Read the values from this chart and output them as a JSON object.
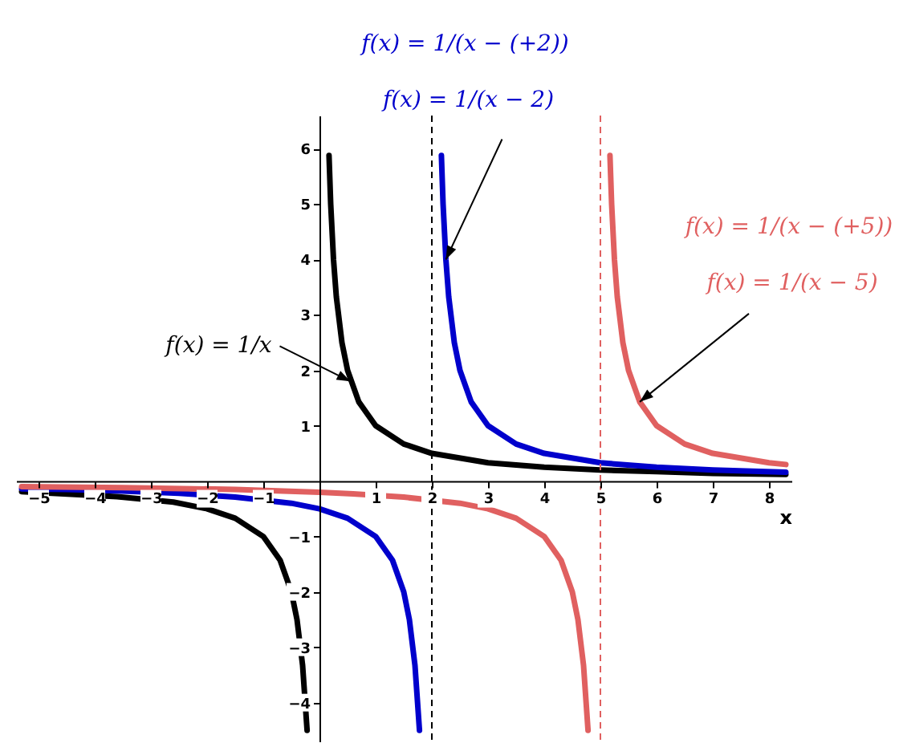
{
  "chart_data": {
    "type": "line",
    "xlabel": "x",
    "xlim": [
      -5.4,
      8.4
    ],
    "ylim": [
      -4.7,
      6.6
    ],
    "xticks": [
      -5,
      -4,
      -3,
      -2,
      -1,
      1,
      2,
      3,
      4,
      5,
      6,
      7,
      8
    ],
    "yticks": [
      -4,
      -3,
      -2,
      -1,
      1,
      2,
      3,
      4,
      5,
      6
    ],
    "grid": false,
    "line_style": "solid",
    "marker": "none",
    "series": [
      {
        "color": "#000000",
        "x": [
          -5.3,
          -3.6,
          -2.6,
          -2,
          -1.5,
          -1,
          -0.7,
          -0.5,
          -0.4,
          -0.3,
          -0.22,
          null,
          0.17,
          0.2,
          0.25,
          0.3,
          0.4,
          0.5,
          0.7,
          1,
          1.5,
          2,
          3,
          4,
          5,
          6,
          7,
          8.3
        ],
        "values": [
          -0.19,
          -0.28,
          -0.38,
          -0.5,
          -0.67,
          -1,
          -1.43,
          -2,
          -2.5,
          -3.33,
          -4.5,
          null,
          5.88,
          5,
          4,
          3.33,
          2.5,
          2,
          1.43,
          1,
          0.67,
          0.5,
          0.33,
          0.25,
          0.2,
          0.17,
          0.14,
          0.12
        ]
      },
      {
        "color": "#0000cc",
        "x": [
          -5.3,
          -4.5,
          -3.5,
          -2.5,
          -1.5,
          -0.5,
          0,
          0.5,
          1,
          1.3,
          1.5,
          1.6,
          1.7,
          1.78,
          null,
          2.17,
          2.2,
          2.25,
          2.3,
          2.4,
          2.5,
          2.7,
          3,
          3.5,
          4,
          5,
          6,
          7,
          8.3
        ],
        "values": [
          -0.14,
          -0.15,
          -0.18,
          -0.22,
          -0.29,
          -0.4,
          -0.5,
          -0.67,
          -1,
          -1.43,
          -2,
          -2.5,
          -3.33,
          -4.5,
          null,
          5.88,
          5,
          4,
          3.33,
          2.5,
          2,
          1.43,
          1,
          0.67,
          0.5,
          0.33,
          0.25,
          0.2,
          0.16
        ]
      },
      {
        "color": "#e06060",
        "x": [
          -5.3,
          -3.5,
          -1.5,
          0,
          0.6,
          1.5,
          2.5,
          3,
          3.5,
          4,
          4.3,
          4.5,
          4.6,
          4.7,
          4.78,
          null,
          5.17,
          5.2,
          5.25,
          5.3,
          5.4,
          5.5,
          5.7,
          6,
          6.5,
          7,
          8,
          8.3
        ],
        "values": [
          -0.1,
          -0.12,
          -0.15,
          -0.2,
          -0.23,
          -0.29,
          -0.4,
          -0.5,
          -0.67,
          -1,
          -1.43,
          -2,
          -2.5,
          -3.33,
          -4.5,
          null,
          5.88,
          5,
          4,
          3.33,
          2.5,
          2,
          1.43,
          1,
          0.67,
          0.5,
          0.33,
          0.3
        ]
      }
    ],
    "ref_lines": [
      {
        "axis": "x",
        "value": 2,
        "color": "#000000",
        "line_style": "dashed"
      },
      {
        "axis": "x",
        "value": 5,
        "color": "#e06060",
        "line_style": "dashed"
      }
    ],
    "annotations": [
      {
        "text": "f(x) = 1/x",
        "x": 0.55,
        "y": 1.8
      },
      "f(x) = 1/(x − (+2))",
      {
        "text": "f(x) = 1/(x − 2)",
        "x": 2.25,
        "y": 4
      },
      "f(x) = 1/(x − (+5))",
      {
        "text": "f(x) = 1/(x − 5)",
        "x": 5.7,
        "y": 1.43
      }
    ]
  }
}
